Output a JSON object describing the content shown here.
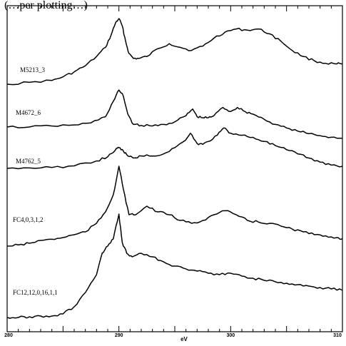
{
  "top_caption": "(…per plotting…)",
  "chart_data": {
    "type": "line",
    "title": "",
    "xlabel": "eV",
    "ylabel": "",
    "xlim": [
      280,
      310
    ],
    "x_ticks": [
      {
        "value": 280,
        "label": "280"
      },
      {
        "value": 290,
        "label": "290"
      },
      {
        "value": 300,
        "label": "300"
      },
      {
        "value": 310,
        "label": "310"
      }
    ],
    "stacked_offsets": true,
    "grid": false,
    "series": [
      {
        "name": "M5213_3",
        "x": [
          280,
          282,
          284,
          285,
          286,
          287,
          288,
          288.8,
          289.3,
          289.7,
          290,
          290.3,
          290.6,
          290.9,
          291.3,
          291.8,
          292.5,
          293.5,
          294.5,
          295.5,
          296.5,
          297.5,
          298.5,
          299.5,
          300.5,
          301.5,
          302.5,
          303.5,
          304.5,
          305.5,
          306.5,
          307.5,
          308.5,
          309.5,
          310
        ],
        "y": [
          0.0,
          0.03,
          0.06,
          0.12,
          0.2,
          0.3,
          0.45,
          0.6,
          0.8,
          1.0,
          1.07,
          0.95,
          0.7,
          0.5,
          0.42,
          0.42,
          0.45,
          0.58,
          0.66,
          0.6,
          0.55,
          0.62,
          0.75,
          0.85,
          0.9,
          0.88,
          0.9,
          0.82,
          0.7,
          0.55,
          0.45,
          0.38,
          0.34,
          0.33,
          0.33
        ]
      },
      {
        "name": "M4672_6",
        "x": [
          280,
          282,
          284,
          286,
          287.5,
          288.8,
          289.5,
          290,
          290.4,
          290.8,
          291.3,
          292,
          293,
          294,
          295,
          296,
          296.6,
          297,
          297.5,
          298,
          298.5,
          299.3,
          300,
          300.6,
          301.3,
          302,
          303,
          304,
          305,
          306,
          307,
          308,
          309,
          310
        ],
        "y": [
          0.0,
          0.0,
          0.02,
          0.04,
          0.08,
          0.2,
          0.5,
          0.72,
          0.6,
          0.25,
          0.05,
          0.03,
          0.02,
          0.05,
          0.1,
          0.22,
          0.35,
          0.2,
          0.18,
          0.18,
          0.22,
          0.38,
          0.3,
          0.38,
          0.3,
          0.25,
          0.15,
          0.05,
          -0.02,
          -0.08,
          -0.13,
          -0.17,
          -0.2,
          -0.22
        ]
      },
      {
        "name": "M4762_5",
        "x": [
          280,
          282,
          284,
          286,
          288,
          289,
          289.7,
          290,
          290.4,
          290.8,
          291.3,
          292,
          293,
          294,
          295,
          295.8,
          296.4,
          297,
          297.5,
          298,
          298.8,
          299.4,
          300,
          301,
          302,
          303,
          304,
          305,
          306,
          307,
          308,
          309,
          310
        ],
        "y": [
          0.0,
          0.01,
          0.02,
          0.06,
          0.18,
          0.28,
          0.45,
          0.5,
          0.42,
          0.3,
          0.25,
          0.3,
          0.3,
          0.35,
          0.5,
          0.65,
          0.85,
          0.6,
          0.58,
          0.65,
          0.8,
          0.98,
          0.85,
          0.8,
          0.75,
          0.65,
          0.55,
          0.45,
          0.35,
          0.25,
          0.15,
          0.08,
          0.05
        ]
      },
      {
        "name": "FC4,0,3,1,2",
        "x": [
          280,
          281,
          282,
          283,
          284,
          285,
          286,
          287,
          288,
          288.8,
          289.5,
          290,
          290.4,
          290.9,
          291.5,
          292.5,
          293.5,
          294.5,
          295.5,
          296.5,
          297.5,
          298.5,
          299.5,
          300.5,
          301.5,
          302.5,
          303.5,
          304.5,
          305.5,
          306.5,
          307.5,
          308.5,
          309.5,
          310
        ],
        "y": [
          0.0,
          0.02,
          0.05,
          0.1,
          0.12,
          0.15,
          0.2,
          0.25,
          0.4,
          0.6,
          0.9,
          1.4,
          1.0,
          0.55,
          0.55,
          0.7,
          0.6,
          0.55,
          0.45,
          0.4,
          0.45,
          0.55,
          0.62,
          0.55,
          0.45,
          0.42,
          0.4,
          0.35,
          0.3,
          0.25,
          0.2,
          0.18,
          0.15,
          0.13
        ]
      },
      {
        "name": "FC12,12,0,16,1,1",
        "x": [
          280,
          281,
          282,
          283,
          284,
          285,
          286,
          287,
          288,
          288.5,
          289,
          289.5,
          290,
          290.3,
          290.7,
          291.2,
          292,
          293,
          294,
          295,
          296,
          297,
          298,
          299,
          300,
          301,
          302,
          303,
          304,
          305,
          306,
          307,
          308,
          309,
          310
        ],
        "y": [
          0.0,
          0.0,
          0.01,
          0.02,
          0.02,
          0.05,
          0.15,
          0.35,
          0.6,
          0.9,
          1.0,
          1.1,
          1.45,
          1.05,
          0.9,
          0.85,
          0.9,
          0.85,
          0.78,
          0.72,
          0.68,
          0.65,
          0.62,
          0.6,
          0.62,
          0.58,
          0.55,
          0.52,
          0.5,
          0.48,
          0.46,
          0.44,
          0.42,
          0.4,
          0.38
        ]
      }
    ]
  }
}
